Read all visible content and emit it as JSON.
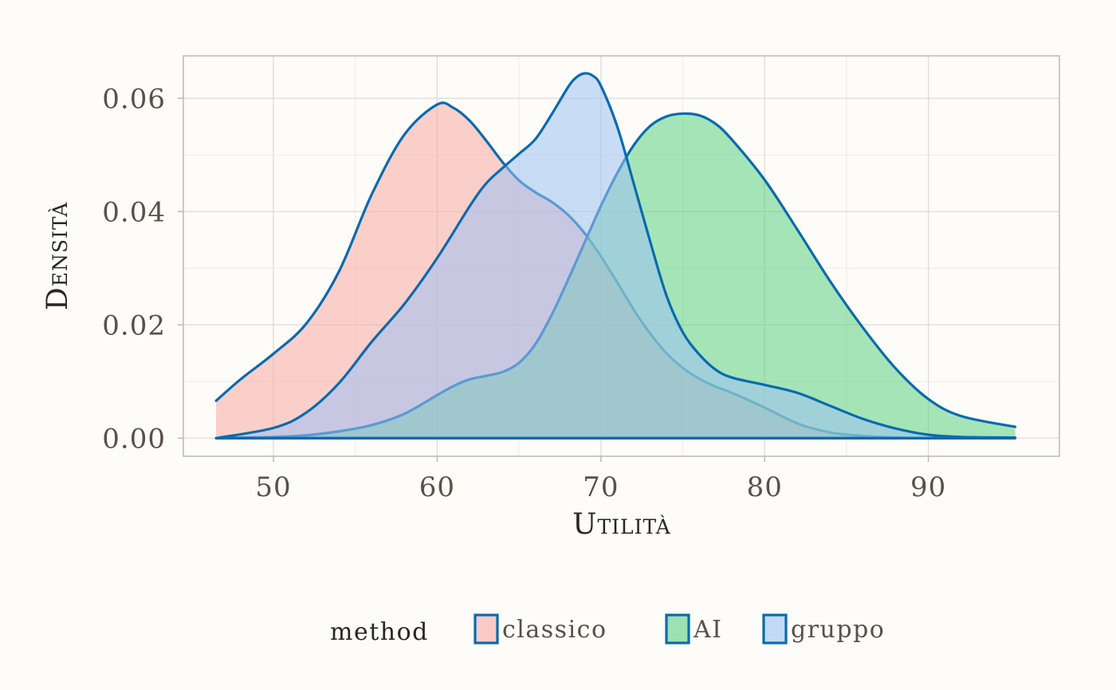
{
  "chart_data": {
    "type": "area",
    "subtype": "density",
    "xlabel": "Utilità",
    "ylabel": "Densità",
    "xlim": [
      44.5,
      98
    ],
    "ylim": [
      -0.0032,
      0.0675
    ],
    "x_ticks": [
      50,
      60,
      70,
      80,
      90
    ],
    "x_tick_labels": [
      "50",
      "60",
      "70",
      "80",
      "90"
    ],
    "y_ticks": [
      0,
      0.02,
      0.04,
      0.06
    ],
    "y_tick_labels": [
      "0.00",
      "0.02",
      "0.04",
      "0.06"
    ],
    "grid": true,
    "legend": {
      "title": "method",
      "position": "bottom",
      "entries": [
        "classico",
        "AI",
        "gruppo"
      ]
    },
    "line_color": "#0a6aae",
    "series": [
      {
        "name": "classico",
        "fill": "#f8a9a3",
        "fill_opacity": 0.55,
        "x": [
          46.5,
          48,
          50,
          52,
          54,
          56,
          58,
          60,
          61,
          62,
          63,
          64,
          65,
          66,
          67,
          68,
          69,
          70,
          71,
          72,
          73,
          74,
          75,
          76,
          77,
          78,
          80,
          82,
          84,
          86,
          88,
          90,
          95.3
        ],
        "y": [
          0.0066,
          0.0104,
          0.0149,
          0.0202,
          0.0294,
          0.043,
          0.0536,
          0.0589,
          0.0583,
          0.056,
          0.0525,
          0.0487,
          0.0455,
          0.0434,
          0.0417,
          0.0394,
          0.0362,
          0.0321,
          0.0275,
          0.0227,
          0.0185,
          0.015,
          0.0124,
          0.0105,
          0.0091,
          0.008,
          0.0054,
          0.0026,
          0.001,
          0.0004,
          0.0001,
          0.0,
          0.0
        ]
      },
      {
        "name": "AI",
        "fill": "#5ccf7f",
        "fill_opacity": 0.55,
        "x": [
          46.5,
          50,
          52,
          54,
          56,
          58,
          60,
          61,
          62,
          63,
          64,
          65,
          66,
          67,
          68,
          69,
          70,
          71,
          72,
          73,
          74,
          75,
          76,
          77,
          78,
          80,
          82,
          84,
          86,
          88,
          90,
          92,
          95.3
        ],
        "y": [
          0.0,
          0.0002,
          0.0005,
          0.0012,
          0.0023,
          0.0043,
          0.0076,
          0.0092,
          0.0104,
          0.011,
          0.0117,
          0.0133,
          0.0166,
          0.0218,
          0.028,
          0.0345,
          0.041,
          0.0468,
          0.0517,
          0.0551,
          0.0568,
          0.0573,
          0.057,
          0.0555,
          0.0527,
          0.0456,
          0.0368,
          0.0277,
          0.0195,
          0.0123,
          0.0069,
          0.0039,
          0.002
        ]
      },
      {
        "name": "gruppo",
        "fill": "#9fc1f4",
        "fill_opacity": 0.55,
        "x": [
          46.5,
          50,
          52,
          54,
          56,
          58,
          60,
          62,
          63,
          64,
          65,
          66,
          67,
          68,
          68.5,
          69,
          69.5,
          70,
          71,
          72,
          73,
          74,
          75,
          76,
          77,
          78,
          80,
          82,
          84,
          86,
          88,
          90,
          92,
          95.3
        ],
        "y": [
          0.0,
          0.0018,
          0.0045,
          0.0097,
          0.017,
          0.0237,
          0.0318,
          0.041,
          0.045,
          0.0477,
          0.0502,
          0.0528,
          0.0572,
          0.062,
          0.0637,
          0.0644,
          0.064,
          0.0622,
          0.055,
          0.045,
          0.0348,
          0.0252,
          0.0187,
          0.0148,
          0.0121,
          0.0107,
          0.0094,
          0.008,
          0.0057,
          0.0034,
          0.0017,
          0.0006,
          0.0002,
          0.0001
        ]
      }
    ]
  }
}
